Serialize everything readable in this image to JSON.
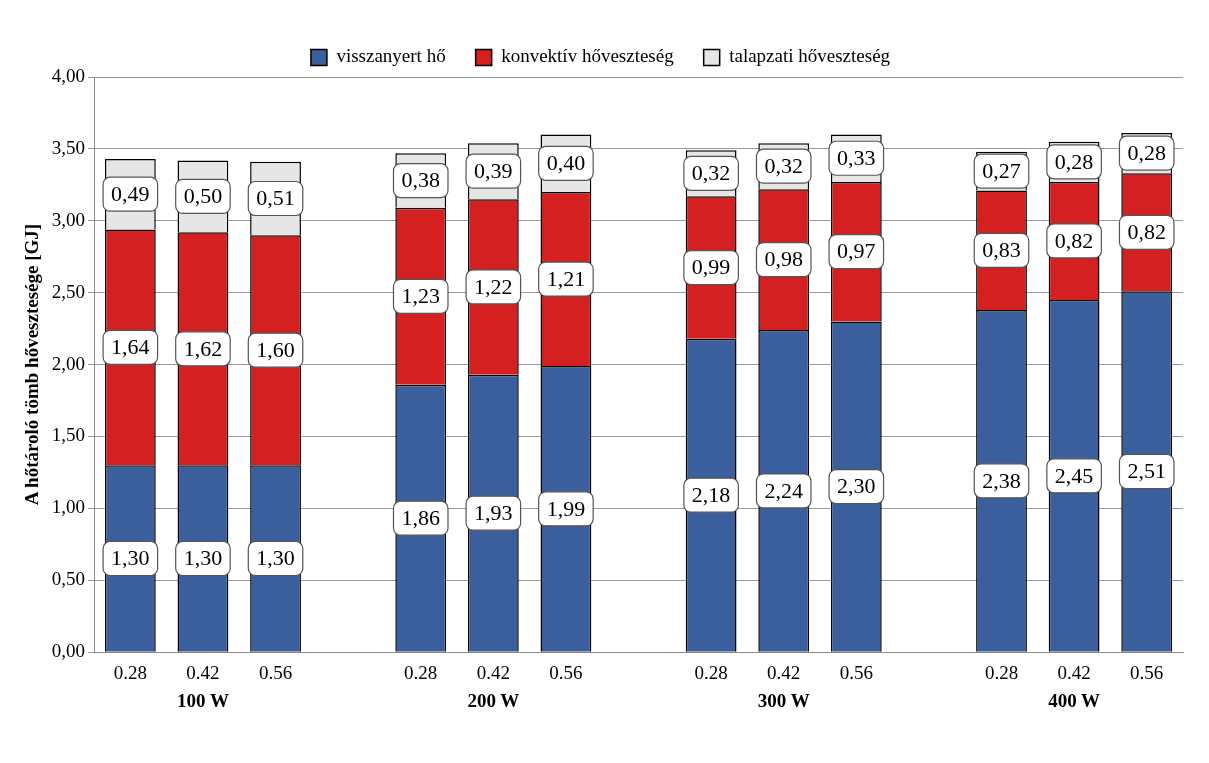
{
  "chart_data": {
    "type": "bar",
    "stacked": true,
    "ylabel": "A hőtároló tömb hővesztesége [GJ]",
    "legend": "top",
    "grid": "y",
    "categories": [
      "0.28",
      "0.42",
      "0.56",
      null,
      "0.28",
      "0.42",
      "0.56",
      null,
      "0.28",
      "0.42",
      "0.56",
      null,
      "0.28",
      "0.42",
      "0.56"
    ],
    "annotations": [
      "100 W",
      "200 W",
      "300 W",
      "400 W"
    ],
    "ylim": [
      0,
      4
    ],
    "yticks": [
      {
        "value": 0,
        "label": "0,00"
      },
      {
        "value": 0.5,
        "label": "0,50"
      },
      {
        "value": 1,
        "label": "1,00"
      },
      {
        "value": 1.5,
        "label": "1,50"
      },
      {
        "value": 2,
        "label": "2,00"
      },
      {
        "value": 2.5,
        "label": "2,50"
      },
      {
        "value": 3,
        "label": "3,00"
      },
      {
        "value": 3.5,
        "label": "3,50"
      },
      {
        "value": 4,
        "label": "4,00"
      }
    ],
    "series": [
      {
        "name": "visszanyert hő",
        "color": "#3a5f9c",
        "values": [
          1.3,
          1.3,
          1.3,
          null,
          1.86,
          1.93,
          1.99,
          null,
          2.18,
          2.24,
          2.3,
          null,
          2.38,
          2.45,
          2.51
        ],
        "value_labels": [
          "1,30",
          "1,30",
          "1,30",
          null,
          "1,86",
          "1,93",
          "1,99",
          null,
          "2,18",
          "2,24",
          "2,30",
          null,
          "2,38",
          "2,45",
          "2,51"
        ]
      },
      {
        "name": "konvektív hőveszteség",
        "color": "#d42020",
        "values": [
          1.64,
          1.62,
          1.6,
          null,
          1.23,
          1.22,
          1.21,
          null,
          0.99,
          0.98,
          0.97,
          null,
          0.83,
          0.82,
          0.82
        ],
        "value_labels": [
          "1,64",
          "1,62",
          "1,60",
          null,
          "1,23",
          "1,22",
          "1,21",
          null,
          "0,99",
          "0,98",
          "0,97",
          null,
          "0,83",
          "0,82",
          "0,82"
        ]
      },
      {
        "name": "talapzati hőveszteség",
        "color": "#e6e6e6",
        "values": [
          0.49,
          0.5,
          0.51,
          null,
          0.38,
          0.39,
          0.4,
          null,
          0.32,
          0.32,
          0.33,
          null,
          0.27,
          0.28,
          0.28
        ],
        "value_labels": [
          "0,49",
          "0,50",
          "0,51",
          null,
          "0,38",
          "0,39",
          "0,40",
          null,
          "0,32",
          "0,32",
          "0,33",
          null,
          "0,27",
          "0,28",
          "0,28"
        ]
      }
    ]
  }
}
